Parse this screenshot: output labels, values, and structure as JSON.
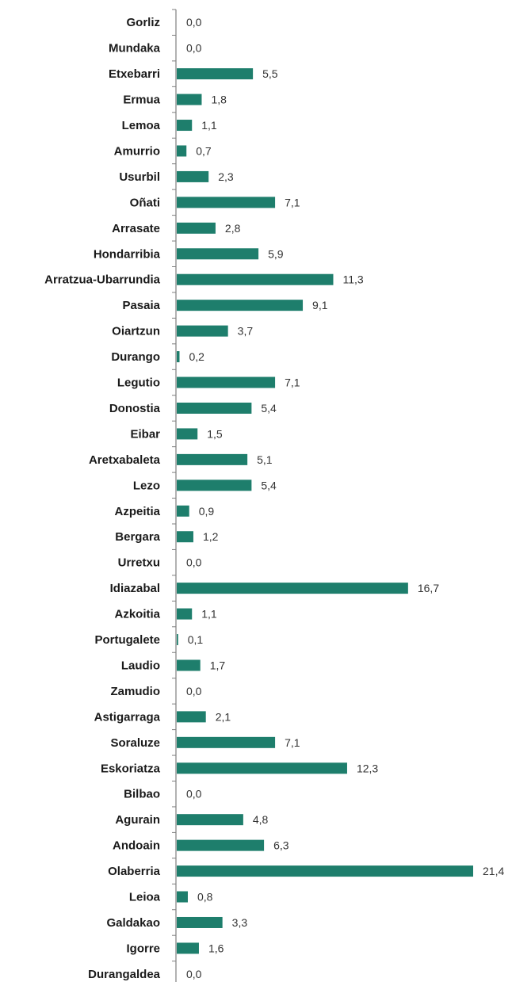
{
  "chart_data": {
    "type": "bar",
    "orientation": "horizontal",
    "title": "",
    "xlabel": "",
    "ylabel": "",
    "xlim": [
      0,
      22
    ],
    "grid": false,
    "legend": "none",
    "bar_color": "#1e7e6c",
    "axis_color": "#7f7f7f",
    "categories": [
      "Gorliz",
      "Mundaka",
      "Etxebarri",
      "Ermua",
      "Lemoa",
      "Amurrio",
      "Usurbil",
      "Oñati",
      "Arrasate",
      "Hondarribia",
      "Arratzua-Ubarrundia",
      "Pasaia",
      "Oiartzun",
      "Durango",
      "Legutio",
      "Donostia",
      "Eibar",
      "Aretxabaleta",
      "Lezo",
      "Azpeitia",
      "Bergara",
      "Urretxu",
      "Idiazabal",
      "Azkoitia",
      "Portugalete",
      "Laudio",
      "Zamudio",
      "Astigarraga",
      "Soraluze",
      "Eskoriatza",
      "Bilbao",
      "Agurain",
      "Andoain",
      "Olaberria",
      "Leioa",
      "Galdakao",
      "Igorre",
      "Durangaldea"
    ],
    "values": [
      0.0,
      0.0,
      5.5,
      1.8,
      1.1,
      0.7,
      2.3,
      7.1,
      2.8,
      5.9,
      11.3,
      9.1,
      3.7,
      0.2,
      7.1,
      5.4,
      1.5,
      5.1,
      5.4,
      0.9,
      1.2,
      0.0,
      16.7,
      1.1,
      0.1,
      1.7,
      0.0,
      2.1,
      7.1,
      12.3,
      0.0,
      4.8,
      6.3,
      21.4,
      0.8,
      3.3,
      1.6,
      0.0
    ],
    "value_labels": [
      "0,0",
      "0,0",
      "5,5",
      "1,8",
      "1,1",
      "0,7",
      "2,3",
      "7,1",
      "2,8",
      "5,9",
      "11,3",
      "9,1",
      "3,7",
      "0,2",
      "7,1",
      "5,4",
      "1,5",
      "5,1",
      "5,4",
      "0,9",
      "1,2",
      "0,0",
      "16,7",
      "1,1",
      "0,1",
      "1,7",
      "0,0",
      "2,1",
      "7,1",
      "12,3",
      "0,0",
      "4,8",
      "6,3",
      "21,4",
      "0,8",
      "3,3",
      "1,6",
      "0,0"
    ]
  }
}
